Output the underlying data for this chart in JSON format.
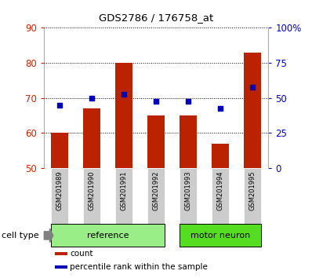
{
  "title": "GDS2786 / 176758_at",
  "samples": [
    "GSM201989",
    "GSM201990",
    "GSM201991",
    "GSM201992",
    "GSM201993",
    "GSM201994",
    "GSM201995"
  ],
  "bar_values": [
    60,
    67,
    80,
    65,
    65,
    57,
    83
  ],
  "percentile_values": [
    68,
    70,
    71,
    69,
    69,
    67,
    73
  ],
  "bar_bottom": 50,
  "ylim_left": [
    50,
    90
  ],
  "ylim_right": [
    0,
    100
  ],
  "yticks_left": [
    50,
    60,
    70,
    80,
    90
  ],
  "yticks_right": [
    0,
    25,
    50,
    75,
    100
  ],
  "yticklabels_right": [
    "0",
    "25",
    "50",
    "75",
    "100%"
  ],
  "bar_color": "#bb2200",
  "percentile_color": "#0000bb",
  "groups": [
    {
      "label": "reference",
      "start_idx": 0,
      "end_idx": 3,
      "color": "#99ee88"
    },
    {
      "label": "motor neuron",
      "start_idx": 4,
      "end_idx": 6,
      "color": "#55dd22"
    }
  ],
  "cell_type_label": "cell type",
  "legend_items": [
    {
      "label": "count",
      "color": "#bb2200"
    },
    {
      "label": "percentile rank within the sample",
      "color": "#0000bb"
    }
  ],
  "tick_label_color_left": "#cc2200",
  "tick_label_color_right": "#0000cc",
  "sample_box_color": "#cccccc",
  "bar_width": 0.55,
  "xlim": [
    -0.5,
    6.5
  ]
}
